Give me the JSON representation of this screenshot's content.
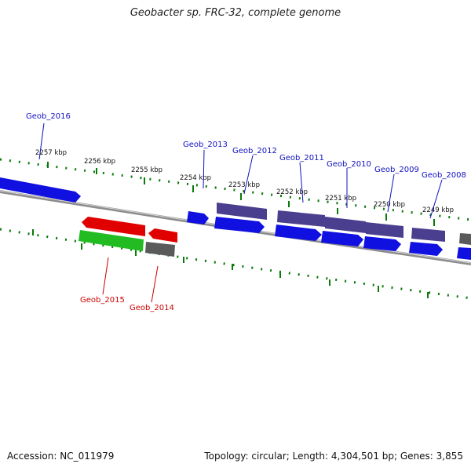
{
  "title": "Geobacter sp. FRC-32, complete genome",
  "footer": {
    "accession": "Accession: NC_011979",
    "topology": "Topology: circular; Length: 4,304,501 bp; Genes: 3,855"
  },
  "colors": {
    "forward_cds": "#1010e0",
    "forward_other": "#4a3f8e",
    "reverse_red": "#e00000",
    "reverse_green": "#22bb22",
    "reverse_gray": "#5a5a5a",
    "backbone": "#808080",
    "tick": "#0a7a0a",
    "label_forward": "#1010c0",
    "label_reverse": "#cc0000"
  },
  "kbp_labels": [
    "2257 kbp",
    "2256 kbp",
    "2255 kbp",
    "2254 kbp",
    "2253 kbp",
    "2252 kbp",
    "2251 kbp",
    "2250 kbp",
    "2249 kbp"
  ],
  "gene_labels": {
    "forward": [
      "Geob_2016",
      "Geob_2013",
      "Geob_2012",
      "Geob_2011",
      "Geob_2010",
      "Geob_2009",
      "Geob_2008"
    ],
    "reverse": [
      "Geob_2015",
      "Geob_2014"
    ]
  }
}
